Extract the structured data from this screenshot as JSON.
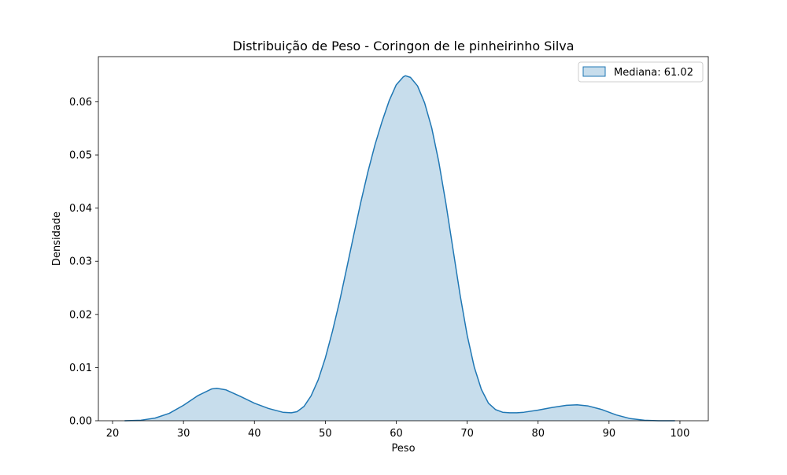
{
  "chart_data": {
    "type": "area",
    "title": "Distribuição de Peso - Coringon de le pinheirinho Silva",
    "xlabel": "Peso",
    "ylabel": "Densidade",
    "xlim": [
      18,
      104
    ],
    "ylim": [
      0,
      0.0685
    ],
    "xticks": [
      {
        "value": 20,
        "label": "20"
      },
      {
        "value": 30,
        "label": "30"
      },
      {
        "value": 40,
        "label": "40"
      },
      {
        "value": 50,
        "label": "50"
      },
      {
        "value": 60,
        "label": "60"
      },
      {
        "value": 70,
        "label": "70"
      },
      {
        "value": 80,
        "label": "80"
      },
      {
        "value": 90,
        "label": "90"
      },
      {
        "value": 100,
        "label": "100"
      }
    ],
    "yticks": [
      {
        "value": 0,
        "label": "0.00"
      },
      {
        "value": 0.01,
        "label": "0.01"
      },
      {
        "value": 0.02,
        "label": "0.02"
      },
      {
        "value": 0.03,
        "label": "0.03"
      },
      {
        "value": 0.04,
        "label": "0.04"
      },
      {
        "value": 0.05,
        "label": "0.05"
      },
      {
        "value": 0.06,
        "label": "0.06"
      }
    ],
    "grid": false,
    "legend_position": "upper right",
    "series": [
      {
        "name": "Mediana: 61.02",
        "line_color": "#1f77b4",
        "fill_color": "#1f77b4",
        "fill_opacity": 0.25,
        "x": [
          21.7,
          24,
          26,
          28,
          30,
          32,
          34,
          34.7,
          36,
          38,
          40,
          42,
          44,
          45.2,
          46,
          47,
          48,
          49,
          50,
          51,
          52,
          53,
          54,
          55,
          56,
          57,
          58,
          59,
          60,
          61,
          61.3,
          62,
          63,
          64,
          65,
          66,
          67,
          68,
          69,
          70,
          71,
          72,
          73,
          74,
          75,
          76,
          77,
          78,
          80,
          82,
          84,
          85.5,
          87,
          89,
          91,
          93,
          95,
          97,
          99.3
        ],
        "y": [
          0.0,
          0.0001,
          0.0005,
          0.0014,
          0.0029,
          0.0047,
          0.006,
          0.0061,
          0.0058,
          0.0046,
          0.0033,
          0.0023,
          0.0016,
          0.0015,
          0.0017,
          0.0027,
          0.0047,
          0.0077,
          0.0118,
          0.0168,
          0.0224,
          0.0286,
          0.0349,
          0.0411,
          0.0468,
          0.0519,
          0.0563,
          0.0602,
          0.0632,
          0.0647,
          0.0649,
          0.0646,
          0.063,
          0.0598,
          0.0551,
          0.0487,
          0.0409,
          0.0323,
          0.0237,
          0.0161,
          0.0101,
          0.0059,
          0.0033,
          0.0021,
          0.0016,
          0.0015,
          0.0015,
          0.0016,
          0.002,
          0.0025,
          0.0029,
          0.003,
          0.0028,
          0.0021,
          0.0011,
          0.0004,
          0.0001,
          0.0,
          0.0
        ]
      }
    ]
  }
}
